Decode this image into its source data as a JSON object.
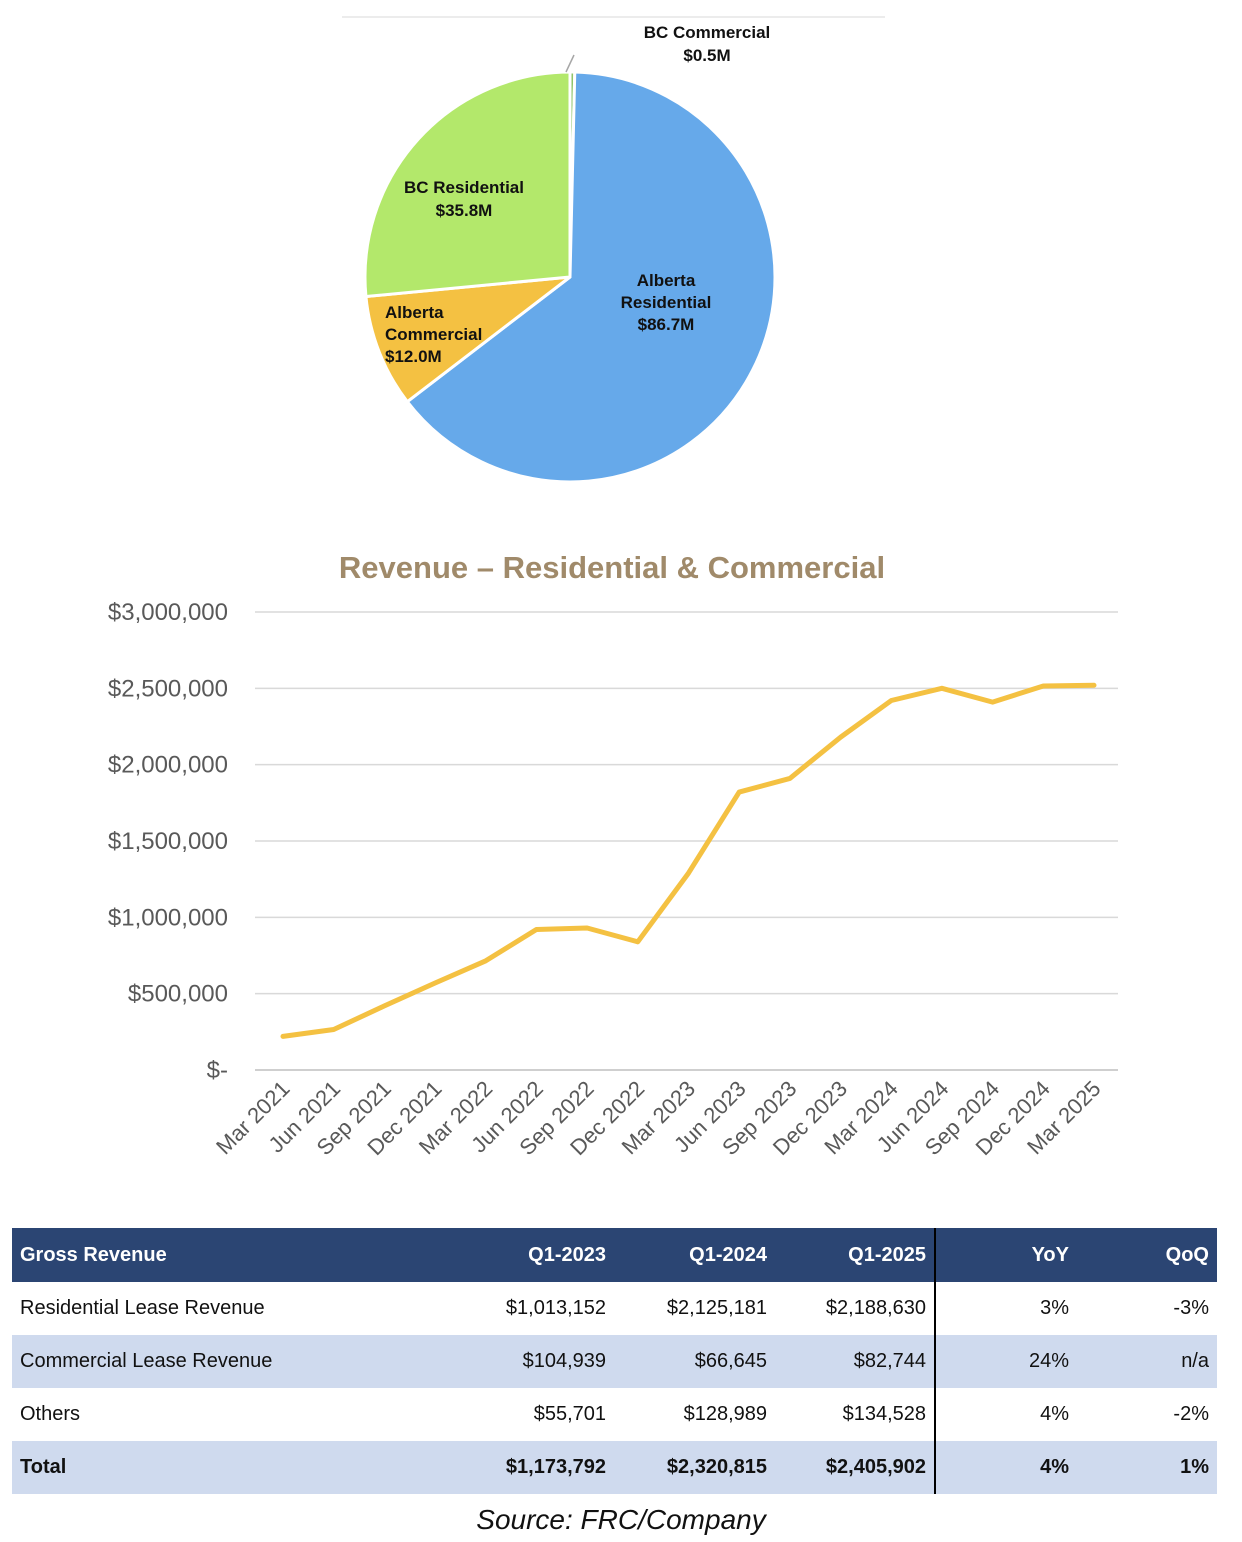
{
  "pie": {
    "slices": [
      {
        "name": "Alberta Residential",
        "label_lines": [
          "Alberta",
          "Residential",
          "$86.7M"
        ],
        "value": 86.7,
        "color": "#66a9ea"
      },
      {
        "name": "Alberta Commercial",
        "label_lines": [
          "Alberta",
          "Commercial",
          "$12.0M"
        ],
        "value": 12.0,
        "color": "#f4c142"
      },
      {
        "name": "BC Residential",
        "label_lines": [
          "BC Residential",
          "$35.8M"
        ],
        "value": 35.8,
        "color": "#b3e86b"
      },
      {
        "name": "BC Commercial",
        "label_lines": [
          "BC Commercial",
          "$0.5M"
        ],
        "value": 0.5,
        "color": "#8fc56a"
      }
    ]
  },
  "chart_data": [
    {
      "type": "pie",
      "labels": [
        "Alberta Residential",
        "Alberta Commercial",
        "BC Residential",
        "BC Commercial"
      ],
      "values": [
        86.7,
        12.0,
        35.8,
        0.5
      ],
      "value_labels": [
        "$86.7M",
        "$12.0M",
        "$35.8M",
        "$0.5M"
      ]
    },
    {
      "type": "line",
      "title": "Revenue – Residential & Commercial",
      "x": [
        "Mar 2021",
        "Jun 2021",
        "Sep 2021",
        "Dec 2021",
        "Mar 2022",
        "Jun 2022",
        "Sep 2022",
        "Dec 2022",
        "Mar 2023",
        "Jun 2023",
        "Sep 2023",
        "Dec 2023",
        "Mar 2024",
        "Jun 2024",
        "Sep 2024",
        "Dec 2024",
        "Mar 2025"
      ],
      "series": [
        {
          "values": [
            220000,
            265000,
            420000,
            570000,
            715000,
            920000,
            930000,
            840000,
            1290000,
            1820000,
            1910000,
            2180000,
            2420000,
            2500000,
            2410000,
            2515000,
            2520000
          ],
          "color": "#f4c142"
        }
      ],
      "ylim": [
        0,
        3000000
      ],
      "yticks": [
        0,
        500000,
        1000000,
        1500000,
        2000000,
        2500000,
        3000000
      ],
      "ytick_labels": [
        "$-",
        "$500,000",
        "$1,000,000",
        "$1,500,000",
        "$2,000,000",
        "$2,500,000",
        "$3,000,000"
      ],
      "grid": true
    }
  ],
  "table": {
    "headers": [
      "Gross Revenue",
      "Q1-2023",
      "Q1-2024",
      "Q1-2025",
      "YoY",
      "QoQ"
    ],
    "rows": [
      [
        "Residential Lease Revenue",
        "$1,013,152",
        "$2,125,181",
        "$2,188,630",
        "3%",
        "-3%"
      ],
      [
        "Commercial Lease Revenue",
        "$104,939",
        "$66,645",
        "$82,744",
        "24%",
        "n/a"
      ],
      [
        "Others",
        "$55,701",
        "$128,989",
        "$134,528",
        "4%",
        "-2%"
      ],
      [
        "Total",
        "$1,173,792",
        "$2,320,815",
        "$2,405,902",
        "4%",
        "1%"
      ]
    ]
  },
  "source": "Source: FRC/Company"
}
